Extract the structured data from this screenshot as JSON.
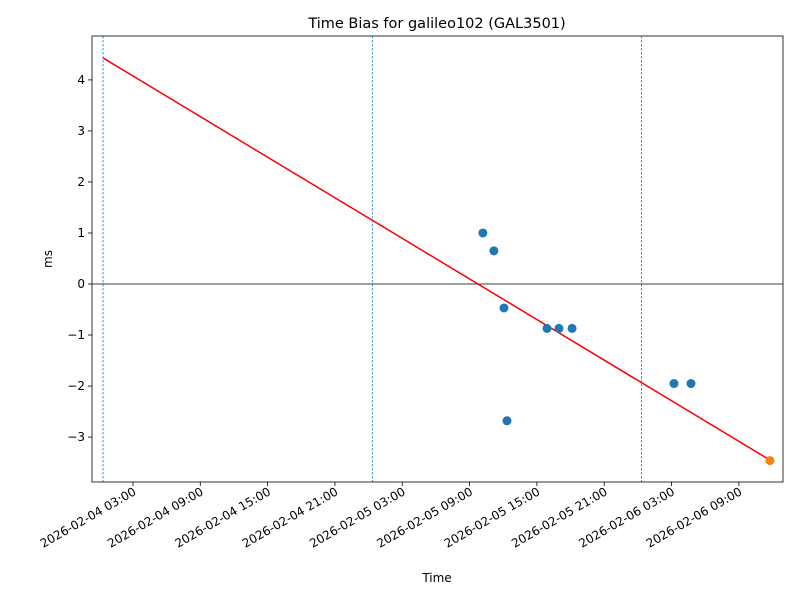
{
  "chart_data": {
    "type": "scatter",
    "title": "Time Bias for galileo102 (GAL3501)",
    "x_label": "Time",
    "y_label": "ms",
    "xlim": [
      "2026-02-03 23:21",
      "2026-02-06 12:56"
    ],
    "xticks": [
      "2026-02-04 03:00",
      "2026-02-04 09:00",
      "2026-02-04 15:00",
      "2026-02-04 21:00",
      "2026-02-05 03:00",
      "2026-02-05 09:00",
      "2026-02-05 15:00",
      "2026-02-05 21:00",
      "2026-02-06 03:00",
      "2026-02-06 09:00"
    ],
    "ylim": [
      -3.88,
      4.86
    ],
    "yticks": [
      {
        "value": -3,
        "label": "−3"
      },
      {
        "value": -2,
        "label": "−2"
      },
      {
        "value": -1,
        "label": "−1"
      },
      0,
      1,
      2,
      3,
      4
    ],
    "hline": 0,
    "hline_color": "#000000",
    "vlines": [
      "2026-02-04 00:20",
      "2026-02-05 00:20",
      "2026-02-06 00:20"
    ],
    "vline_color": "#1f77b4",
    "series": [
      {
        "style": "line",
        "color": "#ff0000",
        "x": [
          "2026-02-04 00:20",
          "2026-02-06 11:46"
        ],
        "values": [
          4.43,
          -3.45
        ]
      },
      {
        "style": "points",
        "color": "#1f77b4",
        "x": [
          "2026-02-05 10:11",
          "2026-02-05 11:10",
          "2026-02-05 12:04",
          "2026-02-05 12:20",
          "2026-02-05 15:54",
          "2026-02-05 16:58",
          "2026-02-05 18:08",
          "2026-02-06 03:13",
          "2026-02-06 04:44"
        ],
        "values": [
          1.0,
          0.65,
          -0.47,
          -2.68,
          -0.87,
          -0.87,
          -0.87,
          -1.95,
          -1.95
        ]
      },
      {
        "style": "points",
        "color": "#ff7f0e",
        "x": [
          "2026-02-06 11:46"
        ],
        "values": [
          -3.46
        ]
      }
    ]
  }
}
